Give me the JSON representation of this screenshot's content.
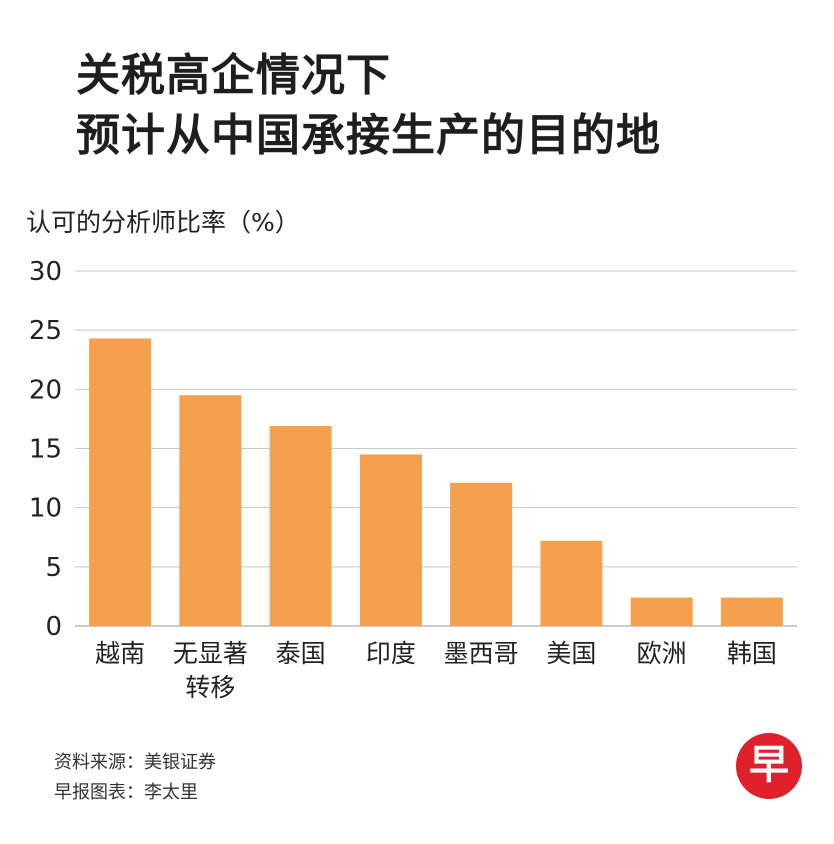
{
  "header": {
    "title_line1": "关税高企情况下",
    "title_line2": "预计从中国承接生产的目的地"
  },
  "chart_data": {
    "type": "bar",
    "ylabel": "认可的分析师比率（%）",
    "ylim": [
      0,
      30
    ],
    "yticks": [
      0,
      5,
      10,
      15,
      20,
      25,
      30
    ],
    "grid": true,
    "categories": [
      [
        "越南"
      ],
      [
        "无显著",
        "转移"
      ],
      [
        "泰国"
      ],
      [
        "印度"
      ],
      [
        "墨西哥"
      ],
      [
        "美国"
      ],
      [
        "欧洲"
      ],
      [
        "韩国"
      ]
    ],
    "values": [
      24.3,
      19.5,
      16.9,
      14.5,
      12.1,
      7.2,
      2.4,
      2.4
    ],
    "bar_color": "#f4a04c",
    "grid_color": "#c8c8c8"
  },
  "footer": {
    "source": "资料来源：美银证券",
    "credit": "早报图表：李太里"
  },
  "logo": {
    "text": "早",
    "color": "#e0202a"
  }
}
